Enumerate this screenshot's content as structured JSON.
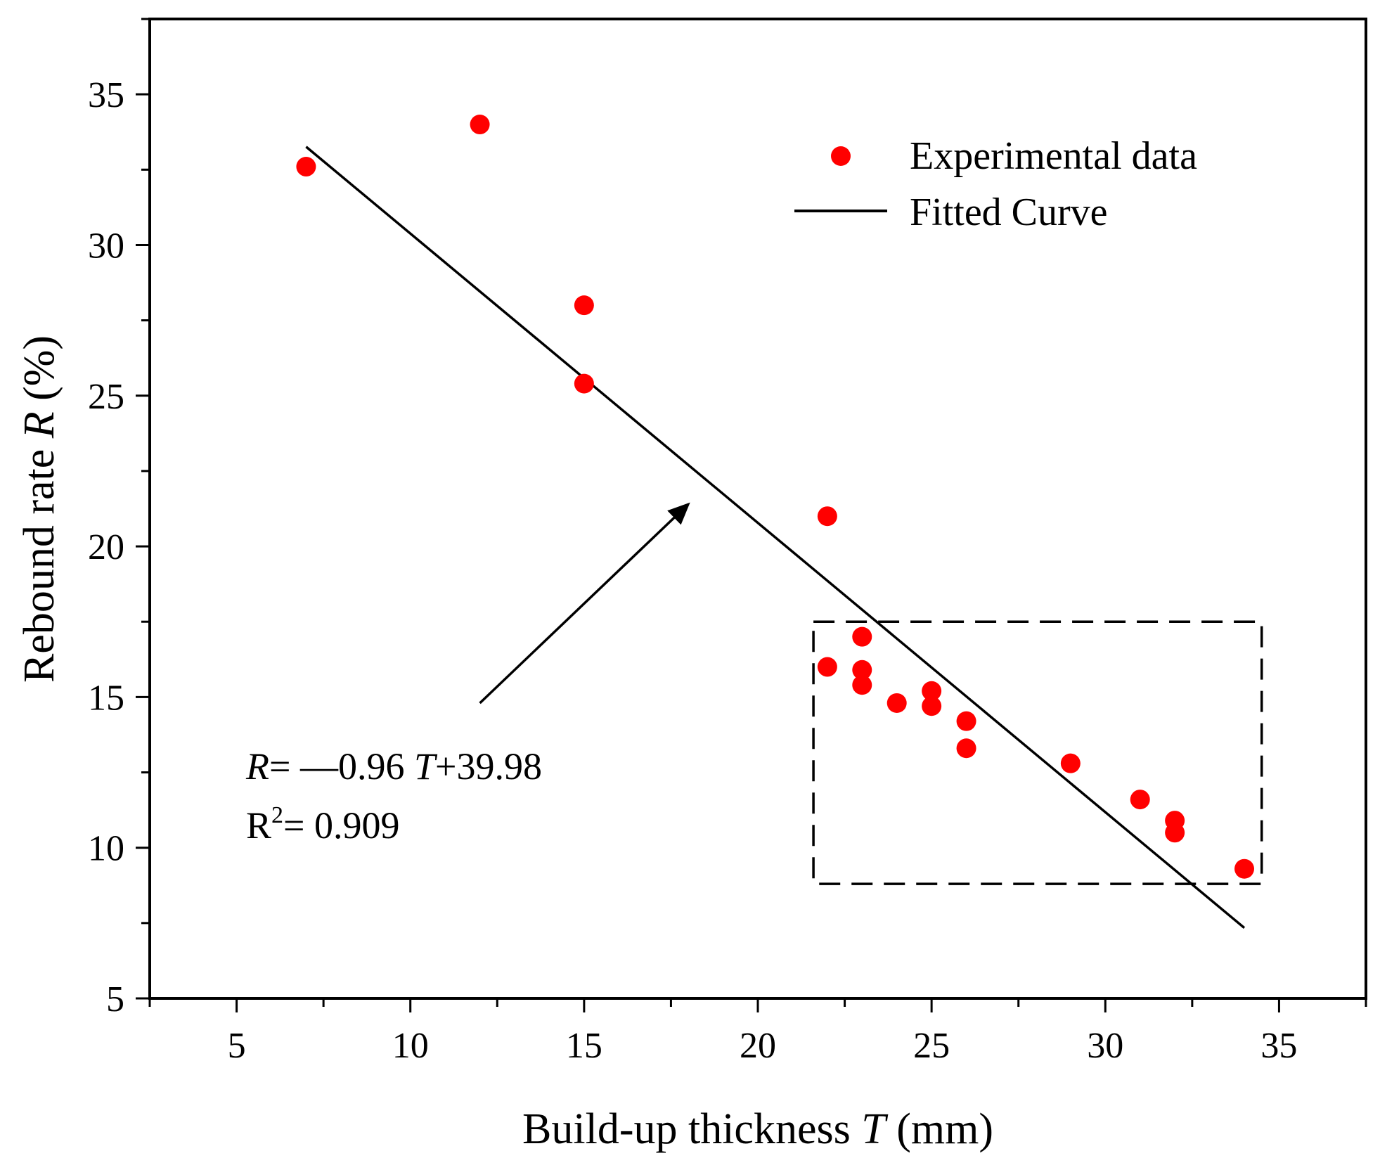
{
  "colors": {
    "marker": "#ff0000",
    "line": "#000000",
    "axis": "#000000",
    "background": "#ffffff"
  },
  "chart_data": {
    "type": "scatter",
    "title": "",
    "xlabel": {
      "prefix": "Build-up thickness ",
      "var": "T",
      "suffix": " (mm)"
    },
    "ylabel": {
      "prefix": "Rebound rate ",
      "var": "R",
      "suffix": " (%)"
    },
    "xlim": [
      2.5,
      37.5
    ],
    "ylim": [
      5,
      37.5
    ],
    "xticks": [
      5,
      10,
      15,
      20,
      25,
      30,
      35
    ],
    "yticks": [
      5,
      10,
      15,
      20,
      25,
      30,
      35
    ],
    "grid": false,
    "legend_position": "top-right",
    "legend": {
      "scatter_label": "Experimental data",
      "line_label": "Fitted Curve"
    },
    "series": [
      {
        "name": "Experimental data",
        "kind": "scatter",
        "points": [
          {
            "x": 7,
            "y": 32.6
          },
          {
            "x": 12,
            "y": 34.0
          },
          {
            "x": 15,
            "y": 28.0
          },
          {
            "x": 15,
            "y": 25.4
          },
          {
            "x": 22,
            "y": 21.0
          },
          {
            "x": 22,
            "y": 16.0
          },
          {
            "x": 23,
            "y": 17.0
          },
          {
            "x": 23,
            "y": 15.9
          },
          {
            "x": 23,
            "y": 15.4
          },
          {
            "x": 24,
            "y": 14.8
          },
          {
            "x": 25,
            "y": 15.2
          },
          {
            "x": 25,
            "y": 14.7
          },
          {
            "x": 26,
            "y": 14.2
          },
          {
            "x": 26,
            "y": 13.3
          },
          {
            "x": 29,
            "y": 12.8
          },
          {
            "x": 31,
            "y": 11.6
          },
          {
            "x": 32,
            "y": 10.9
          },
          {
            "x": 32,
            "y": 10.5
          },
          {
            "x": 34,
            "y": 9.3
          }
        ]
      },
      {
        "name": "Fitted Curve",
        "kind": "line",
        "slope": -0.96,
        "intercept": 39.98,
        "x_range": [
          7,
          34
        ]
      }
    ],
    "annotations": {
      "equation": {
        "var": "R",
        "eq": "= ",
        "minus": "—",
        "coef": "0.96 ",
        "var2": "T",
        "rest": "+39.98"
      },
      "r_squared": {
        "base": "R",
        "sup": "2",
        "rest": "= 0.909"
      },
      "arrow": {
        "from": {
          "x": 12.0,
          "y": 14.8
        },
        "to": {
          "x": 18.0,
          "y": 21.4
        }
      },
      "highlight_box": {
        "x0": 21.6,
        "x1": 34.5,
        "y0": 8.8,
        "y1": 17.5
      }
    }
  }
}
